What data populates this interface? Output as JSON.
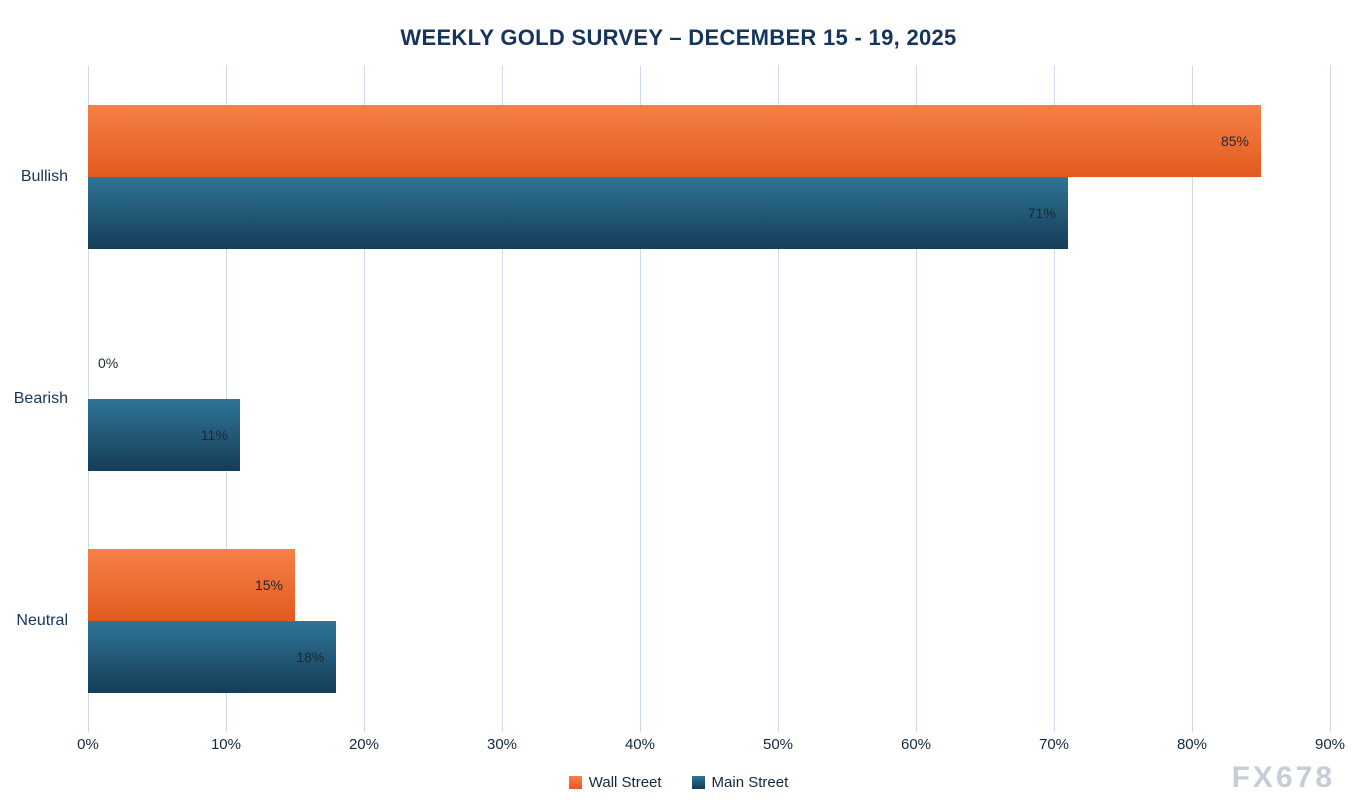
{
  "title": "WEEKLY GOLD SURVEY – DECEMBER 15 - 19, 2025",
  "watermark": "FX678",
  "chart_data": {
    "type": "bar",
    "orientation": "horizontal",
    "title": "WEEKLY GOLD SURVEY – DECEMBER 15 - 19, 2025",
    "categories": [
      "Bullish",
      "Bearish",
      "Neutral"
    ],
    "series": [
      {
        "name": "Wall Street",
        "values": [
          85,
          0,
          15
        ],
        "color_top": "#F58148",
        "color_bottom": "#E25A1D"
      },
      {
        "name": "Main Street",
        "values": [
          71,
          11,
          18
        ],
        "color_top": "#2F7497",
        "color_bottom": "#153D57"
      }
    ],
    "data_labels": [
      [
        "85%",
        "0%",
        "15%"
      ],
      [
        "71%",
        "11%",
        "18%"
      ]
    ],
    "xlabel": "",
    "ylabel": "",
    "xlim": [
      0,
      90
    ],
    "ticks": [
      0,
      10,
      20,
      30,
      40,
      50,
      60,
      70,
      80,
      90
    ],
    "tick_format": "percent",
    "grid": true,
    "gridline_color": "#ccd9ea",
    "legend_position": "bottom"
  }
}
